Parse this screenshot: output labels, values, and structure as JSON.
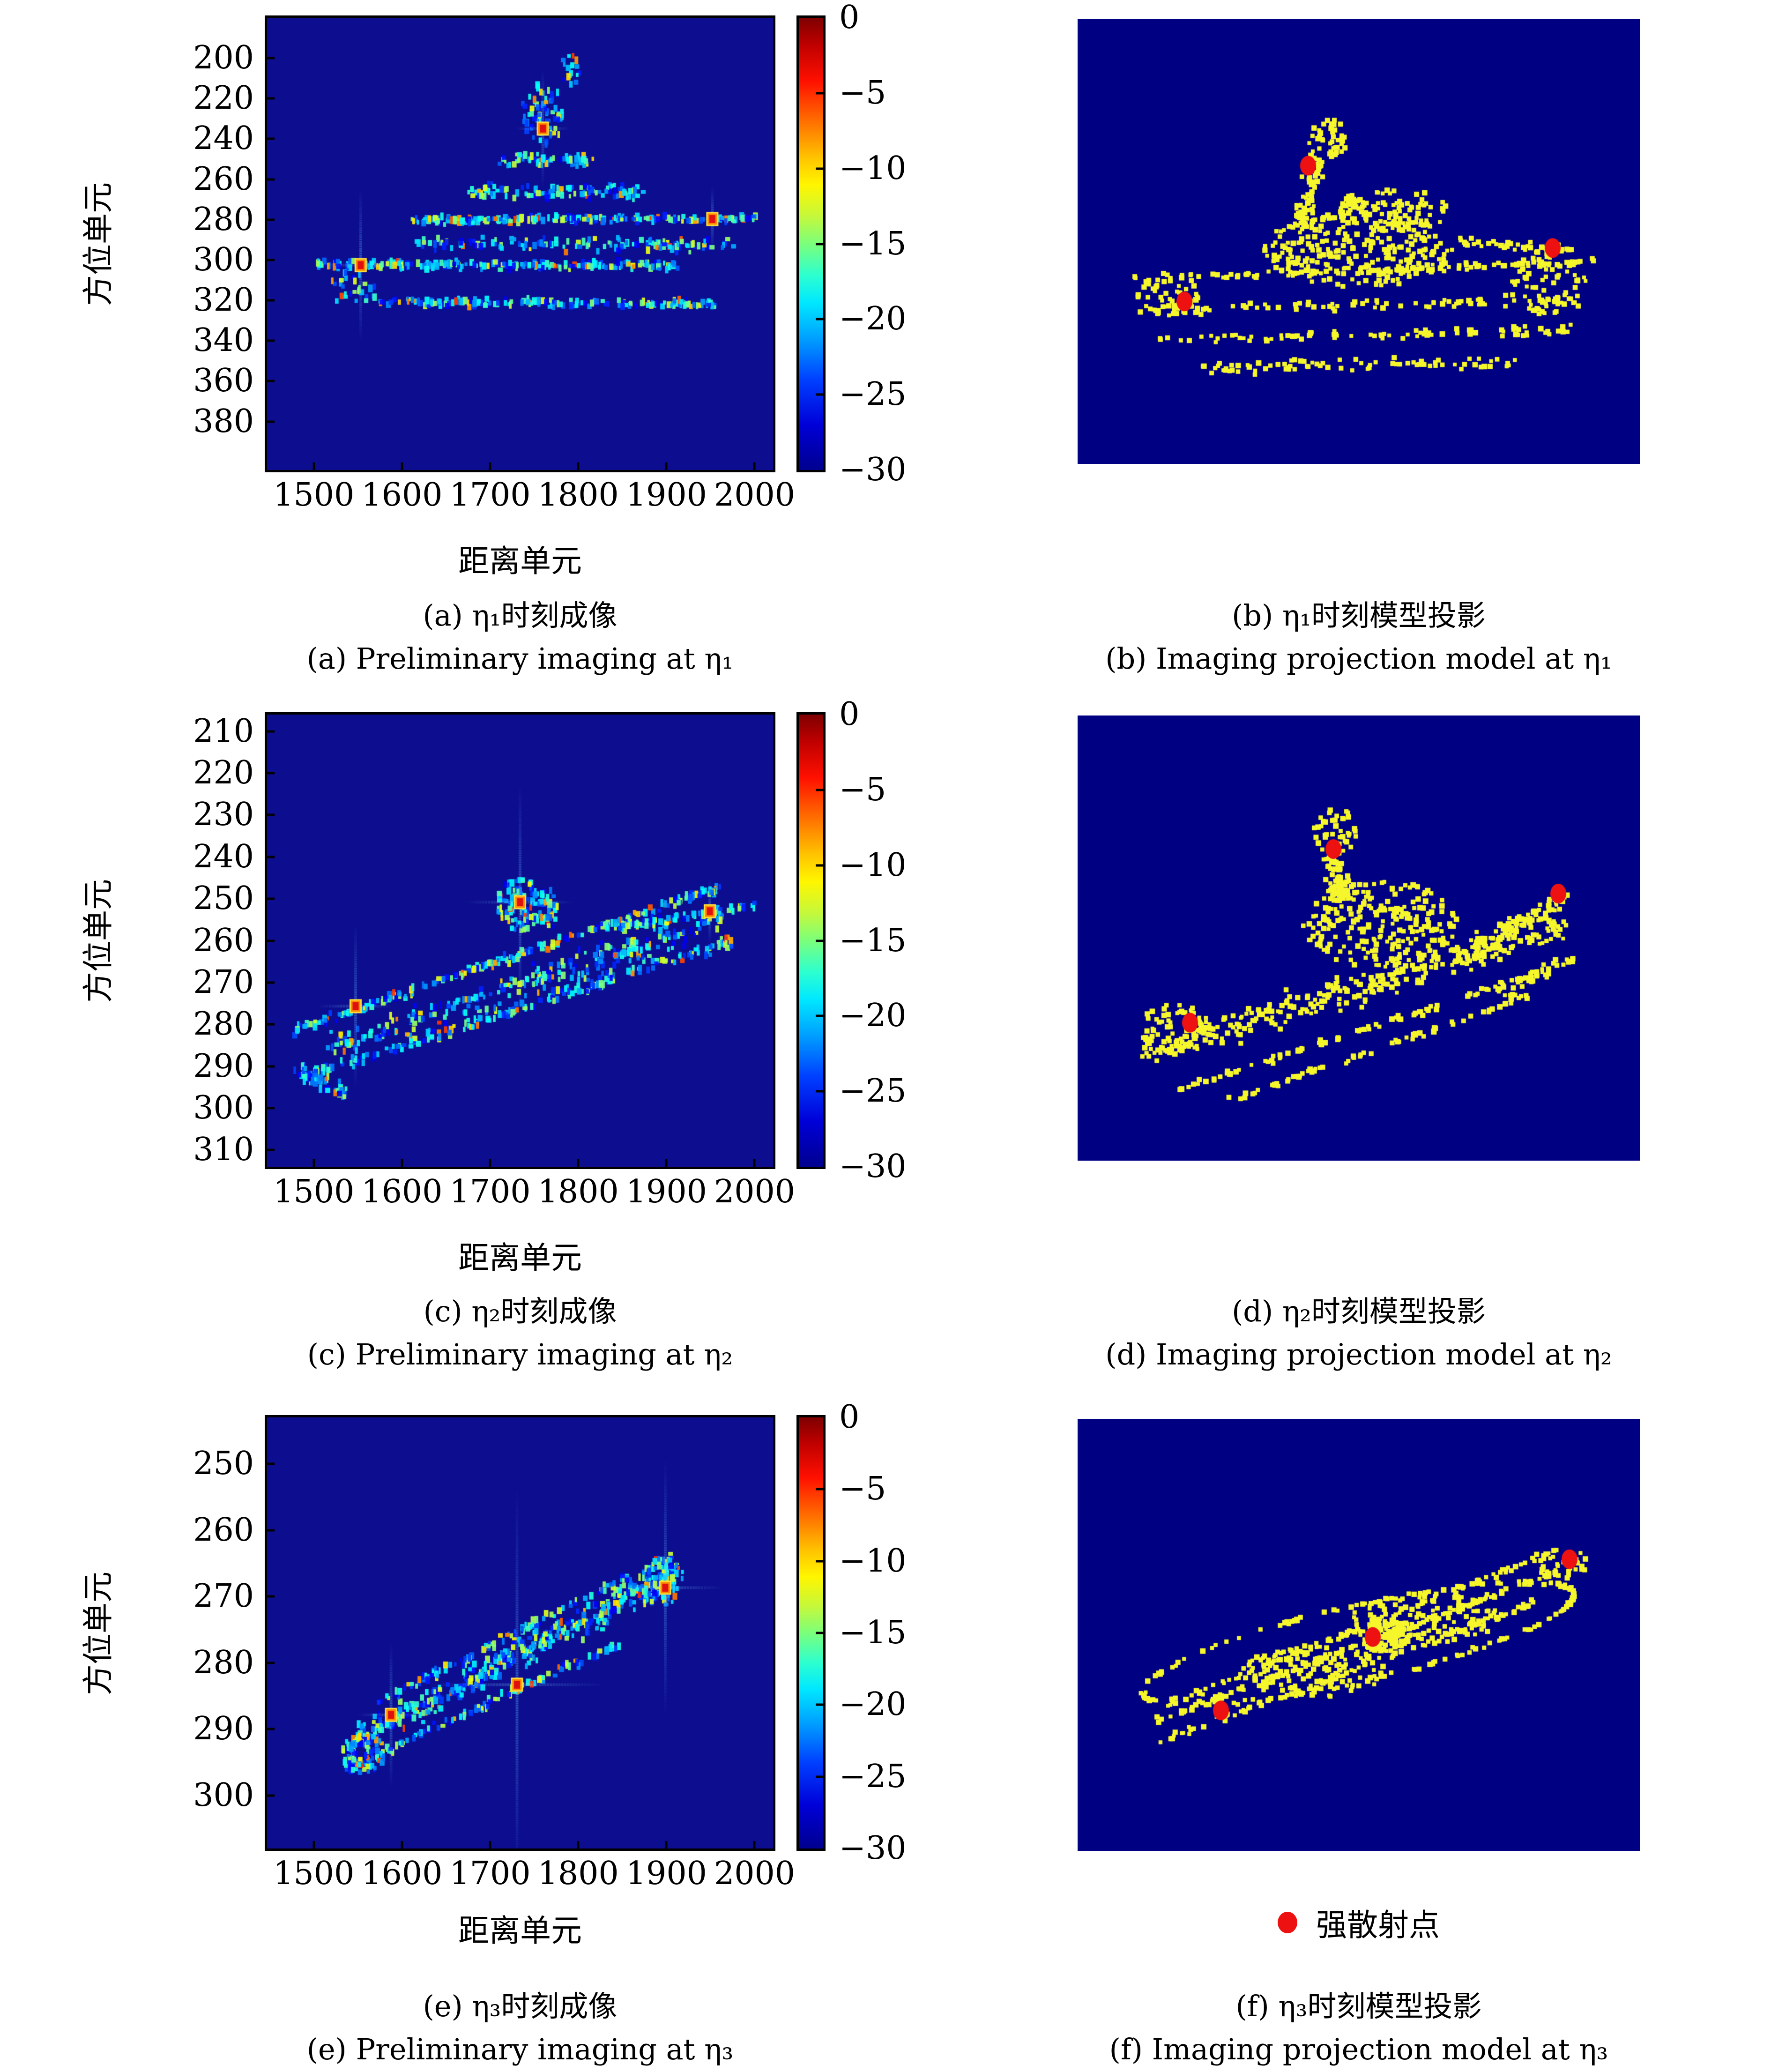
{
  "figure": {
    "axis": {
      "xlabel": "距离单元",
      "ylabel": "方位单元"
    },
    "colorbar_tick_labels": [
      "0",
      "−5",
      "−10",
      "−15",
      "−20",
      "−25",
      "−30"
    ],
    "legend": {
      "label": "强散射点",
      "marker_color": "#ee1111"
    },
    "colors": {
      "imaging_background": "#0d0d8f",
      "model_background": "#000082",
      "model_dot": "#f6f62c",
      "strong_scatterer": "#ee1111",
      "colormap": "jet"
    }
  },
  "chart_data": [
    {
      "id": "a",
      "type": "heatmap",
      "panel": "imaging",
      "title_zh": "(a) η₁时刻成像",
      "title_en": "(a) Preliminary imaging at η₁",
      "xlabel": "距离单元",
      "ylabel": "方位单元",
      "x_ticks": [
        1500,
        1600,
        1700,
        1800,
        1900,
        2000
      ],
      "y_ticks": [
        200,
        220,
        240,
        260,
        280,
        300,
        320,
        340,
        360,
        380
      ],
      "xlim": [
        1447,
        2021
      ],
      "ylim": [
        180,
        404
      ],
      "colorbar": {
        "min": -30,
        "max": 0,
        "ticks": [
          0,
          -5,
          -10,
          -15,
          -20,
          -25,
          -30
        ]
      },
      "strong_scatterers": [
        {
          "x": 1760,
          "y": 235
        },
        {
          "x": 1553,
          "y": 302
        },
        {
          "x": 1952,
          "y": 280
        }
      ],
      "render": {
        "seed": 11,
        "bg": "#0d0d8f",
        "shapes": [
          {
            "x1": 0.1,
            "y1": 0.545,
            "x2": 0.82,
            "y2": 0.548,
            "sx": 0.004,
            "sy": 0.012,
            "n": 230
          },
          {
            "x1": 0.28,
            "y1": 0.448,
            "x2": 0.97,
            "y2": 0.443,
            "sx": 0.004,
            "sy": 0.012,
            "n": 230
          },
          {
            "x1": 0.22,
            "y1": 0.628,
            "x2": 0.9,
            "y2": 0.632,
            "sx": 0.004,
            "sy": 0.014,
            "n": 170
          },
          {
            "x1": 0.3,
            "y1": 0.5,
            "x2": 0.92,
            "y2": 0.5,
            "sx": 0.01,
            "sy": 0.022,
            "n": 130
          },
          {
            "x1": 0.4,
            "y1": 0.385,
            "x2": 0.74,
            "y2": 0.385,
            "sx": 0.01,
            "sy": 0.025,
            "n": 110
          },
          {
            "x1": 0.46,
            "y1": 0.315,
            "x2": 0.64,
            "y2": 0.315,
            "sx": 0.01,
            "sy": 0.02,
            "n": 60
          },
          {
            "cx": 0.545,
            "cy": 0.21,
            "rx": 0.042,
            "ry": 0.075,
            "n": 70
          },
          {
            "cx": 0.6,
            "cy": 0.115,
            "rx": 0.02,
            "ry": 0.035,
            "n": 16
          },
          {
            "cx": 0.17,
            "cy": 0.6,
            "rx": 0.05,
            "ry": 0.04,
            "n": 30
          }
        ],
        "reds": [
          {
            "x": 0.545,
            "y": 0.245,
            "streak": 130
          },
          {
            "x": 0.185,
            "y": 0.547,
            "streak": 170
          },
          {
            "x": 0.88,
            "y": 0.445,
            "streak": 70
          }
        ]
      }
    },
    {
      "id": "b",
      "type": "scatter",
      "panel": "model",
      "title_zh": "(b) η₁时刻模型投影",
      "title_en": "(b) Imaging projection model at η₁",
      "strong_scatterers_frac": [
        {
          "x": 0.41,
          "y": 0.33
        },
        {
          "x": 0.19,
          "y": 0.635
        },
        {
          "x": 0.845,
          "y": 0.515
        }
      ],
      "render": {
        "seed": 22,
        "bg": "#000082",
        "dot": "#f6f62c",
        "red": "#ee1111",
        "shapes": [
          {
            "x1": 0.1,
            "y1": 0.585,
            "x2": 0.92,
            "y2": 0.545,
            "sx": 0.004,
            "sy": 0.012,
            "n": 100
          },
          {
            "x1": 0.11,
            "y1": 0.655,
            "x2": 0.9,
            "y2": 0.63,
            "sx": 0.004,
            "sy": 0.015,
            "n": 90
          },
          {
            "x1": 0.14,
            "y1": 0.72,
            "x2": 0.88,
            "y2": 0.7,
            "sx": 0.004,
            "sy": 0.015,
            "n": 85
          },
          {
            "x1": 0.22,
            "y1": 0.785,
            "x2": 0.78,
            "y2": 0.77,
            "sx": 0.006,
            "sy": 0.02,
            "n": 80
          },
          {
            "cx": 0.5,
            "cy": 0.52,
            "rx": 0.17,
            "ry": 0.085,
            "n": 260
          },
          {
            "cx": 0.56,
            "cy": 0.43,
            "rx": 0.1,
            "ry": 0.05,
            "n": 110
          },
          {
            "x1": 0.4,
            "y1": 0.47,
            "x2": 0.43,
            "y2": 0.3,
            "sx": 0.025,
            "sy": 0.02,
            "n": 70
          },
          {
            "cx": 0.445,
            "cy": 0.27,
            "rx": 0.035,
            "ry": 0.045,
            "n": 40
          },
          {
            "cx": 0.16,
            "cy": 0.62,
            "rx": 0.055,
            "ry": 0.05,
            "n": 50
          },
          {
            "cx": 0.84,
            "cy": 0.6,
            "rx": 0.07,
            "ry": 0.07,
            "n": 70
          },
          {
            "x1": 0.68,
            "y1": 0.5,
            "x2": 0.88,
            "y2": 0.52,
            "sx": 0.006,
            "sy": 0.02,
            "n": 40
          }
        ],
        "reds": [
          {
            "x": 0.41,
            "y": 0.33
          },
          {
            "x": 0.19,
            "y": 0.635
          },
          {
            "x": 0.845,
            "y": 0.515
          }
        ]
      }
    },
    {
      "id": "c",
      "type": "heatmap",
      "panel": "imaging",
      "title_zh": "(c) η₂时刻成像",
      "title_en": "(c) Preliminary imaging at η₂",
      "xlabel": "距离单元",
      "ylabel": "方位单元",
      "x_ticks": [
        1500,
        1600,
        1700,
        1800,
        1900,
        2000
      ],
      "y_ticks": [
        210,
        220,
        230,
        240,
        250,
        260,
        270,
        280,
        290,
        300,
        310
      ],
      "xlim": [
        1447,
        2021
      ],
      "ylim": [
        206,
        314
      ],
      "colorbar": {
        "min": -30,
        "max": 0,
        "ticks": [
          0,
          -5,
          -10,
          -15,
          -20,
          -25,
          -30
        ]
      },
      "strong_scatterers": [
        {
          "x": 1734,
          "y": 251
        },
        {
          "x": 1547,
          "y": 276
        },
        {
          "x": 1949,
          "y": 253
        }
      ],
      "render": {
        "seed": 33,
        "bg": "#0d0d8f",
        "shapes": [
          {
            "x1": 0.05,
            "y1": 0.7,
            "x2": 0.9,
            "y2": 0.38,
            "sx": 0.004,
            "sy": 0.015,
            "n": 240
          },
          {
            "x1": 0.07,
            "y1": 0.8,
            "x2": 0.92,
            "y2": 0.5,
            "sx": 0.004,
            "sy": 0.02,
            "n": 210
          },
          {
            "x1": 0.12,
            "y1": 0.74,
            "x2": 0.9,
            "y2": 0.45,
            "sx": 0.01,
            "sy": 0.045,
            "n": 260
          },
          {
            "x1": 0.7,
            "y1": 0.47,
            "x2": 0.97,
            "y2": 0.42,
            "sx": 0.005,
            "sy": 0.012,
            "n": 80
          },
          {
            "cx": 0.5,
            "cy": 0.42,
            "rx": 0.045,
            "ry": 0.06,
            "n": 100
          },
          {
            "cx": 0.555,
            "cy": 0.43,
            "rx": 0.02,
            "ry": 0.045,
            "n": 35
          },
          {
            "x1": 0.05,
            "y1": 0.78,
            "x2": 0.16,
            "y2": 0.84,
            "sx": 0.01,
            "sy": 0.03,
            "n": 50
          }
        ],
        "reds": [
          {
            "x": 0.5,
            "y": 0.415,
            "streak": 260
          },
          {
            "x": 0.175,
            "y": 0.645,
            "streak": 180
          },
          {
            "x": 0.875,
            "y": 0.435,
            "streak": 70
          }
        ]
      }
    },
    {
      "id": "d",
      "type": "scatter",
      "panel": "model",
      "title_zh": "(d) η₂时刻模型投影",
      "title_en": "(d) Imaging projection model at η₂",
      "strong_scatterers_frac": [
        {
          "x": 0.455,
          "y": 0.3
        },
        {
          "x": 0.2,
          "y": 0.69
        },
        {
          "x": 0.855,
          "y": 0.4
        }
      ],
      "render": {
        "seed": 44,
        "bg": "#000082",
        "dot": "#f6f62c",
        "red": "#ee1111",
        "shapes": [
          {
            "x1": 0.11,
            "y1": 0.76,
            "x2": 0.87,
            "y2": 0.47,
            "sx": 0.006,
            "sy": 0.05,
            "n": 340
          },
          {
            "x1": 0.18,
            "y1": 0.84,
            "x2": 0.84,
            "y2": 0.57,
            "sx": 0.004,
            "sy": 0.012,
            "n": 90
          },
          {
            "x1": 0.26,
            "y1": 0.87,
            "x2": 0.8,
            "y2": 0.63,
            "sx": 0.004,
            "sy": 0.012,
            "n": 70
          },
          {
            "cx": 0.54,
            "cy": 0.47,
            "rx": 0.14,
            "ry": 0.1,
            "n": 240
          },
          {
            "x1": 0.47,
            "y1": 0.42,
            "x2": 0.455,
            "y2": 0.3,
            "sx": 0.03,
            "sy": 0.02,
            "n": 80
          },
          {
            "cx": 0.46,
            "cy": 0.26,
            "rx": 0.04,
            "ry": 0.05,
            "n": 45
          },
          {
            "x1": 0.7,
            "y1": 0.52,
            "x2": 0.87,
            "y2": 0.41,
            "sx": 0.01,
            "sy": 0.03,
            "n": 90
          },
          {
            "cx": 0.17,
            "cy": 0.7,
            "rx": 0.06,
            "ry": 0.06,
            "n": 60
          },
          {
            "x1": 0.75,
            "y1": 0.62,
            "x2": 0.88,
            "y2": 0.55,
            "sx": 0.008,
            "sy": 0.03,
            "n": 40
          }
        ],
        "reds": [
          {
            "x": 0.455,
            "y": 0.3
          },
          {
            "x": 0.2,
            "y": 0.69
          },
          {
            "x": 0.855,
            "y": 0.4
          }
        ]
      }
    },
    {
      "id": "e",
      "type": "heatmap",
      "panel": "imaging",
      "title_zh": "(e) η₃时刻成像",
      "title_en": "(e) Preliminary imaging at η₃",
      "xlabel": "距离单元",
      "ylabel": "方位单元",
      "x_ticks": [
        1500,
        1600,
        1700,
        1800,
        1900,
        2000
      ],
      "y_ticks": [
        250,
        260,
        270,
        280,
        290,
        300
      ],
      "xlim": [
        1447,
        2021
      ],
      "ylim": [
        243,
        308
      ],
      "colorbar": {
        "min": -30,
        "max": 0,
        "ticks": [
          0,
          -5,
          -10,
          -15,
          -20,
          -25,
          -30
        ]
      },
      "strong_scatterers": [
        {
          "x": 1731,
          "y": 283
        },
        {
          "x": 1588,
          "y": 288
        },
        {
          "x": 1899,
          "y": 269
        }
      ],
      "render": {
        "seed": 55,
        "bg": "#0d0d8f",
        "shapes": [
          {
            "x1": 0.155,
            "y1": 0.76,
            "x2": 0.81,
            "y2": 0.36,
            "sx": 0.006,
            "sy": 0.05,
            "n": 420
          },
          {
            "x1": 0.22,
            "y1": 0.66,
            "x2": 0.8,
            "y2": 0.32,
            "sx": 0.004,
            "sy": 0.015,
            "n": 120
          },
          {
            "x1": 0.15,
            "y1": 0.82,
            "x2": 0.7,
            "y2": 0.52,
            "sx": 0.004,
            "sy": 0.015,
            "n": 120
          },
          {
            "cx": 0.19,
            "cy": 0.78,
            "rx": 0.045,
            "ry": 0.045,
            "n": 60
          },
          {
            "cx": 0.78,
            "cy": 0.38,
            "rx": 0.045,
            "ry": 0.055,
            "n": 80
          }
        ],
        "reds": [
          {
            "x": 0.494,
            "y": 0.62,
            "streak": 430
          },
          {
            "x": 0.245,
            "y": 0.69,
            "streak": 160
          },
          {
            "x": 0.787,
            "y": 0.395,
            "streak": 280
          }
        ]
      }
    },
    {
      "id": "f",
      "type": "scatter",
      "panel": "model",
      "title_zh": "(f) η₃时刻模型投影",
      "title_en": "(f) Imaging projection model at η₃",
      "strong_scatterers_frac": [
        {
          "x": 0.525,
          "y": 0.505
        },
        {
          "x": 0.255,
          "y": 0.675
        },
        {
          "x": 0.875,
          "y": 0.325
        }
      ],
      "render": {
        "seed": 66,
        "bg": "#000082",
        "dot": "#f6f62c",
        "red": "#ee1111",
        "shapes": [
          {
            "cx": 0.5,
            "cy": 0.52,
            "rx": 0.4,
            "ry": 0.085,
            "rot": -17,
            "n": 150
          },
          {
            "x1": 0.14,
            "y1": 0.7,
            "x2": 0.86,
            "y2": 0.35,
            "sx": 0.004,
            "sy": 0.012,
            "n": 110
          },
          {
            "x1": 0.16,
            "y1": 0.66,
            "x2": 0.84,
            "y2": 0.31,
            "sx": 0.004,
            "sy": 0.012,
            "n": 90
          },
          {
            "x1": 0.14,
            "y1": 0.75,
            "x2": 0.82,
            "y2": 0.42,
            "sx": 0.004,
            "sy": 0.012,
            "n": 90
          },
          {
            "cx": 0.42,
            "cy": 0.585,
            "rx": 0.13,
            "ry": 0.06,
            "n": 140
          },
          {
            "cx": 0.62,
            "cy": 0.46,
            "rx": 0.13,
            "ry": 0.06,
            "n": 140
          },
          {
            "cx": 0.545,
            "cy": 0.5,
            "rx": 0.045,
            "ry": 0.04,
            "n": 110
          },
          {
            "cx": 0.86,
            "cy": 0.335,
            "rx": 0.05,
            "ry": 0.035,
            "n": 40
          }
        ],
        "reds": [
          {
            "x": 0.525,
            "y": 0.505
          },
          {
            "x": 0.255,
            "y": 0.675
          },
          {
            "x": 0.875,
            "y": 0.325
          }
        ]
      }
    }
  ]
}
